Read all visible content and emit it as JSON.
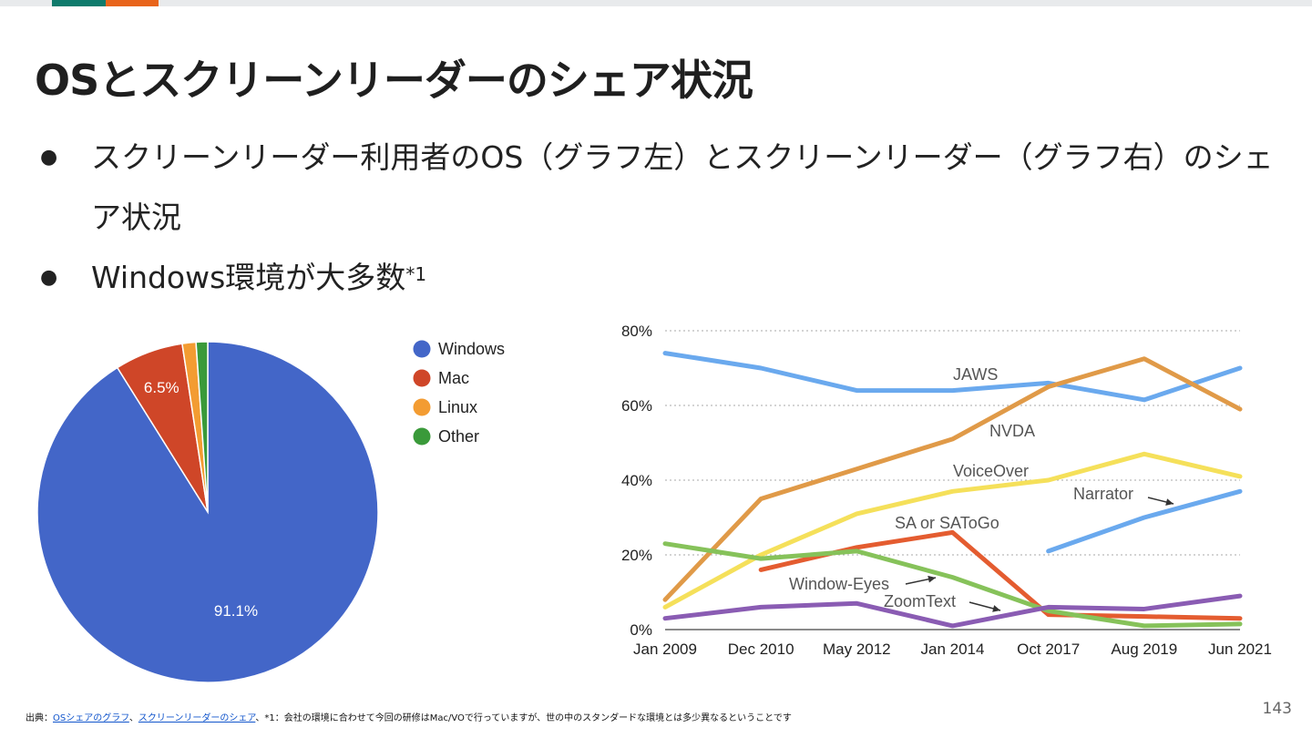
{
  "slide": {
    "title": "OSとスクリーンリーダーのシェア状況",
    "accent_colors": [
      "#0f7b6c",
      "#e8641b"
    ],
    "bullets": [
      {
        "text": "スクリーンリーダー利用者のOS（グラフ左）とスクリーンリーダー（グラフ右）のシェア状況",
        "sup": ""
      },
      {
        "text": "Windows環境が大多数",
        "sup": "*1"
      }
    ],
    "footer": {
      "prefix": "出典：",
      "link1": "OSシェアのグラフ",
      "sep": "、",
      "link2": "スクリーンリーダーのシェア",
      "note": "、*1：会社の環境に合わせて今回の研修はMac/VOで行っていますが、世の中のスタンダードな環境とは多少異なるということです"
    },
    "page_number": "143"
  },
  "chart_data": [
    {
      "type": "pie",
      "title": "",
      "slices": [
        {
          "label": "Windows",
          "value": 91.1,
          "color": "#4366c8",
          "data_label": "91.1%"
        },
        {
          "label": "Mac",
          "value": 6.5,
          "color": "#cf4628",
          "data_label": "6.5%"
        },
        {
          "label": "Linux",
          "value": 1.3,
          "color": "#f39c32",
          "data_label": ""
        },
        {
          "label": "Other",
          "value": 1.1,
          "color": "#3a9a3a",
          "data_label": ""
        }
      ],
      "legend": [
        "Windows",
        "Mac",
        "Linux",
        "Other"
      ],
      "legend_position": "right"
    },
    {
      "type": "line",
      "title": "",
      "categories": [
        "Jan 2009",
        "Dec 2010",
        "May 2012",
        "Jan 2014",
        "Oct 2017",
        "Aug 2019",
        "Jun 2021"
      ],
      "ylim": [
        0,
        80
      ],
      "yticks": [
        "0%",
        "20%",
        "40%",
        "60%",
        "80%"
      ],
      "grid": true,
      "series": [
        {
          "name": "JAWS",
          "color": "#6aa9ee",
          "values": [
            74,
            70,
            64,
            64,
            66,
            61.5,
            70
          ]
        },
        {
          "name": "NVDA",
          "color": "#e09a48",
          "values": [
            8,
            35,
            43,
            51,
            65,
            72.5,
            59
          ]
        },
        {
          "name": "VoiceOver",
          "color": "#f5e05a",
          "values": [
            6,
            20,
            31,
            37,
            40,
            47,
            41
          ]
        },
        {
          "name": "Narrator",
          "color": "#6aa9ee",
          "values": [
            null,
            null,
            null,
            null,
            21,
            30,
            37
          ]
        },
        {
          "name": "SA or SAToGo",
          "color": "#e45c30",
          "values": [
            null,
            16,
            22,
            26,
            4,
            3.5,
            3
          ]
        },
        {
          "name": "Window-Eyes",
          "color": "#86c25a",
          "values": [
            23,
            19,
            21,
            14,
            5,
            1,
            1.5
          ]
        },
        {
          "name": "ZoomText",
          "color": "#8a5cb3",
          "values": [
            3,
            6,
            7,
            1,
            6,
            5.5,
            9
          ]
        }
      ]
    }
  ]
}
